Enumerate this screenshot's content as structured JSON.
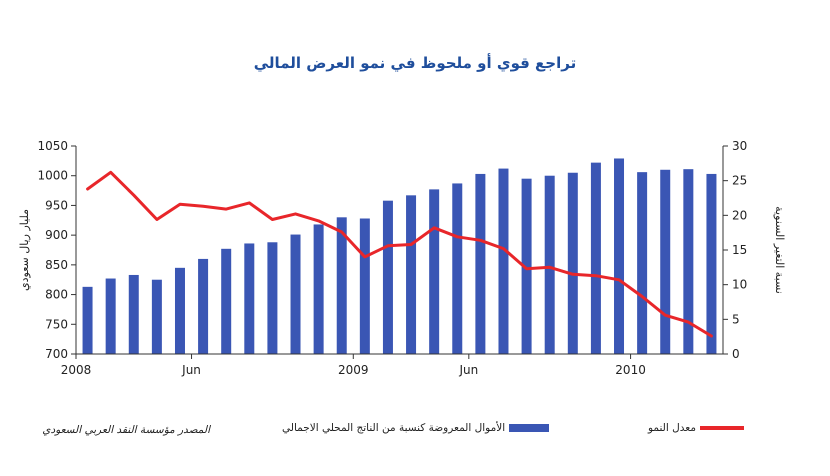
{
  "chart_data": {
    "type": "bar",
    "title": "تراجع قوي أو ملحوظ في نمو العرض المالي",
    "ylabel": "مليار ريال سعودي",
    "y2label": "نسبة التغير السنوية",
    "ylim": [
      700,
      1050
    ],
    "y2lim": [
      0,
      30
    ],
    "yticks": [
      "700",
      "750",
      "800",
      "850",
      "900",
      "950",
      "1000",
      "1050"
    ],
    "y2ticks": [
      "0",
      "5",
      "10",
      "15",
      "20",
      "25",
      "30"
    ],
    "xticks": [
      {
        "label": "2008",
        "index": 0
      },
      {
        "label": "Jun",
        "index": 5
      },
      {
        "label": "2009",
        "index": 12
      },
      {
        "label": "Jun",
        "index": 17
      },
      {
        "label": "2010",
        "index": 24
      }
    ],
    "grid": false,
    "legend_position": "bottom",
    "series": [
      {
        "name": "الأموال المعروضة كنسبة من الناتج المحلي الاجمالي",
        "type": "bar",
        "axis": "left",
        "color": "#3a56b4",
        "values": [
          813,
          827,
          833,
          825,
          845,
          860,
          877,
          886,
          888,
          901,
          918,
          930,
          928,
          958,
          967,
          977,
          987,
          1003,
          1012,
          995,
          1000,
          1005,
          1022,
          1029,
          1006,
          1010,
          1011,
          1003
        ]
      },
      {
        "name": "معدل النمو",
        "type": "line",
        "axis": "right",
        "color": "#e8262a",
        "values": [
          23.8,
          26.2,
          22.9,
          19.4,
          21.6,
          21.3,
          20.9,
          21.8,
          19.4,
          20.2,
          19.2,
          17.6,
          14.0,
          15.6,
          15.8,
          18.2,
          16.9,
          16.4,
          15.2,
          12.3,
          12.5,
          11.5,
          11.3,
          10.7,
          8.3,
          5.6,
          4.6,
          2.6
        ]
      }
    ]
  },
  "legend": {
    "growth_label": "معدل النمو",
    "bar_label": "الأموال المعروضة كنسبة من الناتج المحلي الاجمالي"
  },
  "source": "المصدر مؤسسة النقد العربي السعودي",
  "colors": {
    "bar": "#3a56b4",
    "line": "#e8262a",
    "title": "#1f4e9c"
  }
}
